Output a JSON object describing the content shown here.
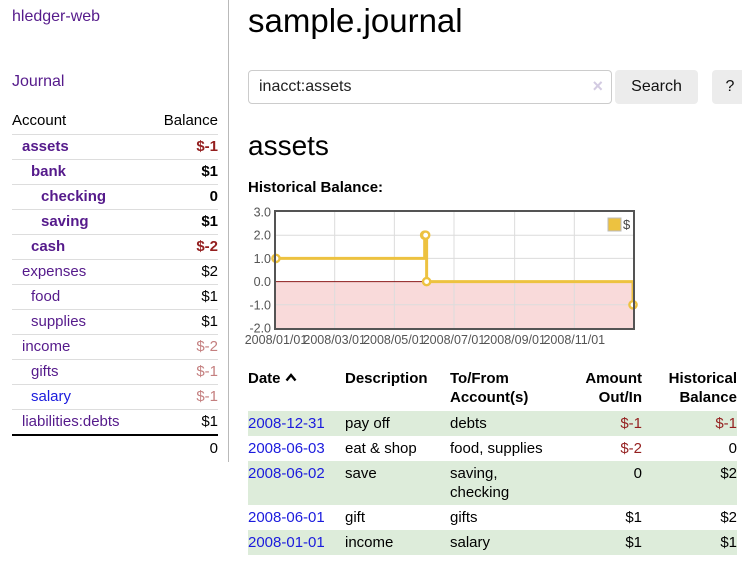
{
  "palette": {
    "link-purple": "#551a8b",
    "link-blue": "#1b1bdd",
    "negative-strong": "#941f1f",
    "negative-soft": "#c47f7f",
    "row-green": "#ddecda",
    "button-bg": "#ececec"
  },
  "app": {
    "title": "hledger-web",
    "nav_journal": "Journal"
  },
  "sidebar": {
    "headers": {
      "account": "Account",
      "balance": "Balance"
    },
    "accounts": [
      {
        "name": "assets",
        "balance": "$-1"
      },
      {
        "name": "bank",
        "balance": "$1"
      },
      {
        "name": "checking",
        "balance": "0"
      },
      {
        "name": "saving",
        "balance": "$1"
      },
      {
        "name": "cash",
        "balance": "$-2"
      },
      {
        "name": "expenses",
        "balance": "$2"
      },
      {
        "name": "food",
        "balance": "$1"
      },
      {
        "name": "supplies",
        "balance": "$1"
      },
      {
        "name": "income",
        "balance": "$-2"
      },
      {
        "name": "gifts",
        "balance": "$-1"
      },
      {
        "name": "salary",
        "balance": "$-1"
      },
      {
        "name": "liabilities:debts",
        "balance": "$1"
      }
    ],
    "total_balance": "0"
  },
  "main": {
    "page_title": "sample.journal",
    "search": {
      "value": "inacct:assets",
      "clear_icon": "×",
      "search_button": "Search",
      "help_button": "?"
    },
    "section_title": "assets",
    "chart_label": "Historical Balance:"
  },
  "chart_data": {
    "type": "line",
    "style": "step",
    "legend": "$",
    "legend_position": "top-right",
    "grid": true,
    "ylim": [
      -2.0,
      3.0
    ],
    "x_max_day": 365,
    "y_ticks": [
      {
        "label": "3.0",
        "value": 3
      },
      {
        "label": "2.0",
        "value": 2
      },
      {
        "label": "1.0",
        "value": 1
      },
      {
        "label": "0.0",
        "value": 0
      },
      {
        "label": "-1.0",
        "value": -1
      },
      {
        "label": "-2.0",
        "value": -2
      }
    ],
    "x_ticks": [
      {
        "label": "2008/01/01",
        "day": 0
      },
      {
        "label": "2008/03/01",
        "day": 60
      },
      {
        "label": "2008/05/01",
        "day": 121
      },
      {
        "label": "2008/07/01",
        "day": 182
      },
      {
        "label": "2008/09/01",
        "day": 244
      },
      {
        "label": "2008/11/01",
        "day": 305
      }
    ],
    "series": [
      {
        "name": "$",
        "points": [
          {
            "date": "2008-01-01",
            "day": 0,
            "value": 1
          },
          {
            "date": "2008-06-01",
            "day": 152,
            "value": 2
          },
          {
            "date": "2008-06-02",
            "day": 153,
            "value": 2
          },
          {
            "date": "2008-06-03",
            "day": 154,
            "value": 0
          },
          {
            "date": "2008-12-31",
            "day": 365,
            "value": -1
          }
        ]
      }
    ],
    "colors": {
      "line": "#edc240",
      "marker_fill": "#ffffff",
      "negative_fill": "#f9dada",
      "zero_line": "#8b1a1a",
      "grid": "#dcdcdc",
      "border": "#545454",
      "tick_text": "#545454"
    }
  },
  "register": {
    "headers": {
      "date": "Date",
      "description": "Description",
      "accounts": "To/From Account(s)",
      "amount": "Amount Out/In",
      "balance": "Historical Balance"
    },
    "rows": [
      {
        "date": "2008-12-31",
        "description": "pay off",
        "accounts": "debts",
        "amount": "$-1",
        "balance": "$-1"
      },
      {
        "date": "2008-06-03",
        "description": "eat & shop",
        "accounts": "food, supplies",
        "amount": "$-2",
        "balance": "0"
      },
      {
        "date": "2008-06-02",
        "description": "save",
        "accounts": "saving,\nchecking",
        "amount": "0",
        "balance": "$2"
      },
      {
        "date": "2008-06-01",
        "description": "gift",
        "accounts": "gifts",
        "amount": "$1",
        "balance": "$2"
      },
      {
        "date": "2008-01-01",
        "description": "income",
        "accounts": "salary",
        "amount": "$1",
        "balance": "$1"
      }
    ]
  }
}
